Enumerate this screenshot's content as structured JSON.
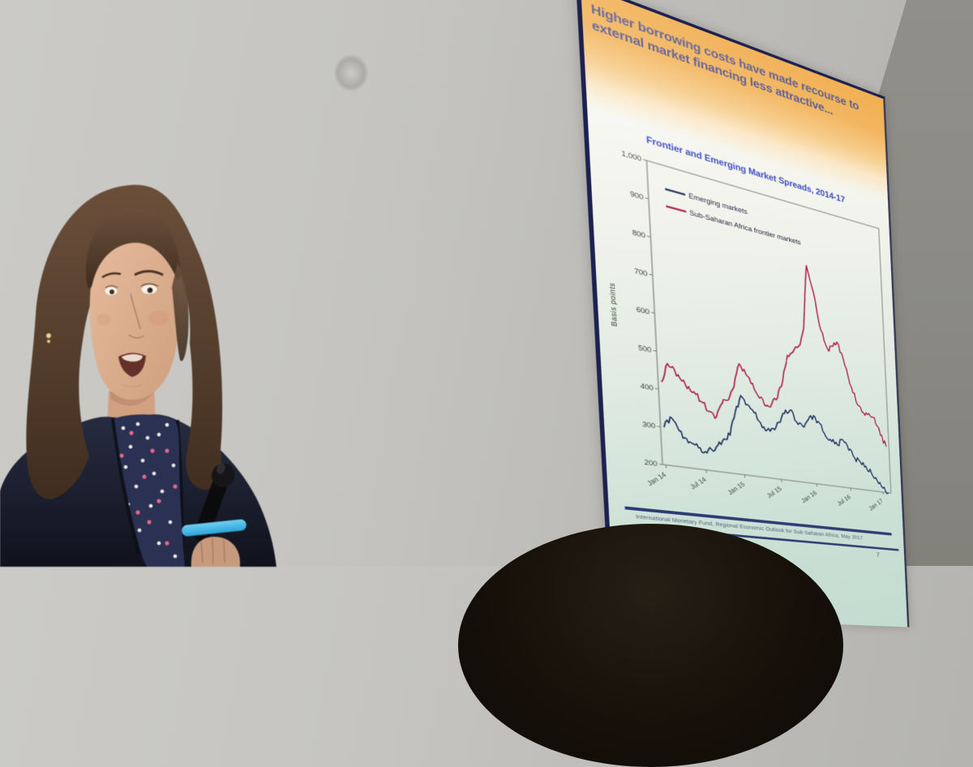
{
  "slide": {
    "title": "Higher borrowing costs have made recourse to external market financing less attractive...",
    "footer": "International Monetary Fund, Regional Economic Outlook for Sub-Saharan Africa, May 2017",
    "page_number": "7",
    "colors": {
      "header_orange": "#efa23a",
      "title_text": "#3f3f7e",
      "chart_title_blue": "#2e3ec0",
      "rule_navy": "#232d6e",
      "footer_text": "#4a5578"
    }
  },
  "scene": {
    "microphone_band_blue": "#3fb3e6",
    "wall_gray_left": "#c6c5c1",
    "wall_gray_right": "#8b8a85"
  },
  "chart_data": {
    "type": "line",
    "title": "Frontier and Emerging Market Spreads, 2014-17",
    "xlabel": "",
    "ylabel": "Basis points",
    "ylim": [
      200,
      1000
    ],
    "ytick_labels": [
      "1,000",
      "900",
      "800",
      "700",
      "600",
      "500",
      "400",
      "300",
      "200"
    ],
    "x_tick_labels": [
      "Jan 14",
      "Jul 14",
      "Jan 15",
      "Jul 15",
      "Jan 16",
      "Jul 16",
      "Jan 17"
    ],
    "x_tick_indices": [
      0,
      6,
      12,
      18,
      24,
      30,
      36
    ],
    "grid": false,
    "legend_position": "top-left",
    "series": [
      {
        "name": "Emerging markets",
        "color": "#1c2b5e",
        "values": [
          300,
          330,
          305,
          280,
          268,
          258,
          250,
          258,
          272,
          292,
          305,
          372,
          420,
          398,
          378,
          352,
          335,
          342,
          362,
          390,
          402,
          372,
          362,
          382,
          398,
          378,
          342,
          330,
          322,
          340,
          312,
          292,
          282,
          272,
          252,
          232,
          212,
          200
        ]
      },
      {
        "name": "Sub-Saharan Africa frontier markets",
        "color": "#b01c45",
        "values": [
          420,
          472,
          458,
          432,
          420,
          402,
          382,
          362,
          350,
          390,
          402,
          442,
          508,
          482,
          460,
          422,
          402,
          412,
          432,
          482,
          558,
          572,
          592,
          645,
          830,
          758,
          652,
          602,
          612,
          622,
          562,
          502,
          452,
          432,
          432,
          422,
          372,
          340
        ]
      }
    ]
  }
}
